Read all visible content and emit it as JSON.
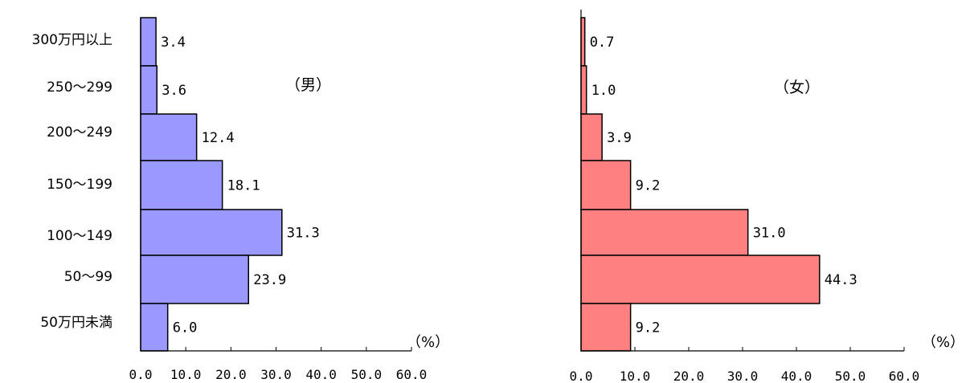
{
  "chart_data": [
    {
      "type": "bar",
      "orientation": "horizontal",
      "subtitle": "（男）",
      "unit_label": "（%）",
      "categories": [
        "300万円以上",
        "250～299",
        "200～249",
        "150～199",
        "100～149",
        "50～99",
        "50万円未満"
      ],
      "values": [
        3.4,
        3.6,
        12.4,
        18.1,
        31.3,
        23.9,
        6.0
      ],
      "value_labels": [
        "3.4",
        "3.6",
        "12.4",
        "18.1",
        "31.3",
        "23.9",
        "6.0"
      ],
      "xlim": [
        0,
        60
      ],
      "ticks": [
        "0.0",
        "10.0",
        "20.0",
        "30.0",
        "40.0",
        "50.0",
        "60.0"
      ],
      "bar_color": "#9999ff",
      "grid": false
    },
    {
      "type": "bar",
      "orientation": "horizontal",
      "subtitle": "（女）",
      "unit_label": "（%）",
      "categories": [
        "300万円以上",
        "250～299",
        "200～249",
        "150～199",
        "100～149",
        "50～99",
        "50万円未満"
      ],
      "values": [
        0.7,
        1.0,
        3.9,
        9.2,
        31.0,
        44.3,
        9.2
      ],
      "value_labels": [
        "0.7",
        "1.0",
        "3.9",
        "9.2",
        "31.0",
        "44.3",
        "9.2"
      ],
      "xlim": [
        0,
        60
      ],
      "ticks": [
        "0.0",
        "10.0",
        "20.0",
        "30.0",
        "40.0",
        "50.0",
        "60.0"
      ],
      "bar_color": "#ff8080",
      "grid": false
    }
  ]
}
